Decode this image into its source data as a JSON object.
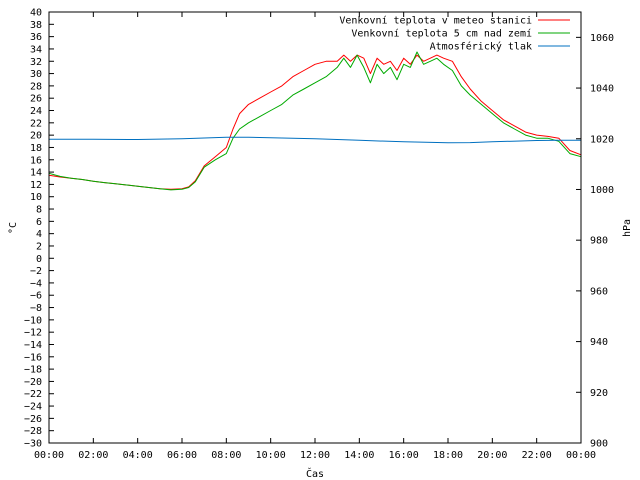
{
  "chart_data": {
    "type": "line",
    "xlabel": "Čas",
    "ylabel_left": "°C",
    "ylabel_right": "hPa",
    "x_ticks": [
      "00:00",
      "02:00",
      "04:00",
      "06:00",
      "08:00",
      "10:00",
      "12:00",
      "14:00",
      "16:00",
      "18:00",
      "20:00",
      "22:00",
      "00:00"
    ],
    "x_range_hours": [
      0,
      24
    ],
    "y_left_range": [
      -30,
      40
    ],
    "y_left_step": 2,
    "y_right_range": [
      900,
      1070
    ],
    "y_right_ticks": [
      900,
      920,
      940,
      960,
      980,
      1000,
      1020,
      1040,
      1060
    ],
    "grid": false,
    "legend_position": "top-right",
    "series": [
      {
        "name": "Venkovní teplota v meteo stanici",
        "axis": "left",
        "color": "#ff0000",
        "x": [
          0,
          0.5,
          1,
          1.5,
          2,
          2.5,
          3,
          3.5,
          4,
          4.5,
          5,
          5.5,
          6,
          6.3,
          6.6,
          7,
          7.5,
          8,
          8.3,
          8.6,
          9,
          9.5,
          10,
          10.5,
          11,
          11.5,
          12,
          12.5,
          13,
          13.3,
          13.6,
          13.9,
          14.2,
          14.5,
          14.8,
          15.1,
          15.4,
          15.7,
          16,
          16.3,
          16.6,
          16.9,
          17.2,
          17.5,
          17.8,
          18.2,
          18.6,
          19,
          19.5,
          20,
          20.5,
          21,
          21.5,
          22,
          22.5,
          23,
          23.5,
          24
        ],
        "values": [
          13.5,
          13.2,
          13.0,
          12.8,
          12.5,
          12.3,
          12.1,
          11.9,
          11.7,
          11.5,
          11.3,
          11.2,
          11.3,
          11.6,
          12.6,
          15.0,
          16.5,
          18.0,
          21.0,
          23.5,
          25.0,
          26.0,
          27.0,
          28.0,
          29.5,
          30.5,
          31.5,
          32.0,
          32.0,
          33.0,
          32.0,
          33.0,
          32.5,
          30.0,
          32.5,
          31.5,
          32.0,
          30.5,
          32.5,
          31.5,
          33.0,
          32.0,
          32.5,
          33.0,
          32.5,
          32.0,
          29.5,
          27.5,
          25.5,
          24.0,
          22.5,
          21.5,
          20.5,
          20.0,
          19.8,
          19.5,
          17.5,
          16.8
        ]
      },
      {
        "name": "Venkovní teplota 5 cm nad zemí",
        "axis": "left",
        "color": "#00aa00",
        "x": [
          0,
          0.5,
          1,
          1.5,
          2,
          2.5,
          3,
          3.5,
          4,
          4.5,
          5,
          5.5,
          6,
          6.3,
          6.6,
          7,
          7.5,
          8,
          8.3,
          8.6,
          9,
          9.5,
          10,
          10.5,
          11,
          11.5,
          12,
          12.5,
          13,
          13.3,
          13.6,
          13.9,
          14.2,
          14.5,
          14.8,
          15.1,
          15.4,
          15.7,
          16,
          16.3,
          16.6,
          16.9,
          17.2,
          17.5,
          17.8,
          18.2,
          18.6,
          19,
          19.5,
          20,
          20.5,
          21,
          21.5,
          22,
          22.5,
          23,
          23.5,
          24
        ],
        "values": [
          13.8,
          13.3,
          13.0,
          12.8,
          12.5,
          12.3,
          12.1,
          11.9,
          11.7,
          11.5,
          11.3,
          11.1,
          11.2,
          11.5,
          12.4,
          14.8,
          16.0,
          17.0,
          19.5,
          21.0,
          22.0,
          23.0,
          24.0,
          25.0,
          26.5,
          27.5,
          28.5,
          29.5,
          31.0,
          32.5,
          31.0,
          33.0,
          31.0,
          28.5,
          31.5,
          30.0,
          31.0,
          29.0,
          31.5,
          31.0,
          33.5,
          31.5,
          32.0,
          32.5,
          31.5,
          30.5,
          28.0,
          26.5,
          25.0,
          23.5,
          22.0,
          21.0,
          20.0,
          19.5,
          19.5,
          19.0,
          17.0,
          16.5
        ]
      },
      {
        "name": "Atmosférický tlak",
        "axis": "right",
        "color": "#0070c0",
        "x": [
          0,
          2,
          4,
          6,
          7,
          8,
          9,
          10,
          12,
          14,
          16,
          18,
          19,
          20,
          22,
          23,
          24
        ],
        "values": [
          1019.8,
          1019.8,
          1019.7,
          1020.0,
          1020.3,
          1020.6,
          1020.6,
          1020.4,
          1020.0,
          1019.4,
          1018.8,
          1018.4,
          1018.5,
          1018.8,
          1019.3,
          1019.4,
          1019.4
        ]
      }
    ]
  }
}
